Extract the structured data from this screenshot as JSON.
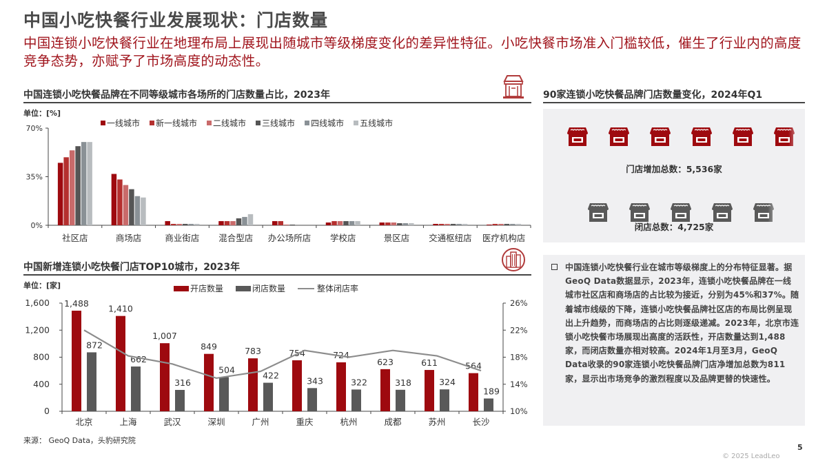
{
  "header": {
    "title": "中国小吃快餐行业发展现状：门店数量",
    "subtitle": "中国连锁小吃快餐行业在地理布局上展现出随城市等级梯度变化的差异性特征。小吃快餐市场准入门槛较低，催生了行业内的高度竞争态势，亦赋予了市场高度的动态性。"
  },
  "colors": {
    "accent": "#a0141c",
    "tier1": "#9e0a0f",
    "newtier1": "#b5302f",
    "tier2": "#c96a6a",
    "tier3": "#555555",
    "tier4": "#8a9196",
    "tier5": "#b8bcbf",
    "open": "#9e0a0f",
    "close": "#595959",
    "rate": "#8c8c8c",
    "panel_bg": "#f0f0f2"
  },
  "chart1": {
    "title": "中国连锁小吃快餐品牌在不同等级城市各场所的门店数量占比，2023年",
    "unit": "单位：[%]",
    "icon": "storefront-icon"
  },
  "chart2": {
    "title": "中国新增连锁小吃快餐门店TOP10城市，2023年",
    "unit": "单位：[家]",
    "icon": "city-buildings-icon"
  },
  "panel": {
    "title": "90家连锁小吃快餐品牌门店数量变化，2024年Q1",
    "open_label": "门店增加总数：5,536家",
    "close_label": "闭店总数：4,725家",
    "open_icons": 6,
    "close_icons": 5
  },
  "bullet": {
    "text": "中国连锁小吃快餐行业在城市等级梯度上的分布特征显著。据GeoQ Data数据显示，2023年，连锁小吃快餐品牌在一线城市社区店和商场店的占比较为接近，分别为45%和37%。随着城市线级的下降，连锁小吃快餐品牌社区店的布局比例呈现出上升趋势，而商场店的占比则逐级递减。2023年，北京市连锁小吃快餐市场展现出高度的活跃性，开店数量达到1,488家，而闭店数量亦相对较高。2024年1月至3月，GeoQ Data收录的90家连锁小吃快餐品牌门店净增加总数为811家，显示出市场竞争的激烈程度以及品牌更替的快速性。"
  },
  "footer": {
    "source": "来源：  GeoQ Data，头豹研究院",
    "page": "5",
    "copyright": "© 2025 LeadLeo"
  },
  "chart_data": [
    {
      "type": "bar",
      "title": "中国连锁小吃快餐品牌在不同等级城市各场所的门店数量占比，2023年",
      "ylabel": "单位：[%]",
      "xlabel": "",
      "ylim": [
        0,
        70
      ],
      "yticks": [
        "0%",
        "35%",
        "70%"
      ],
      "grid": false,
      "legend_position": "top",
      "categories": [
        "社区店",
        "商场店",
        "商业街店",
        "混合型店",
        "办公场所店",
        "学校店",
        "景区店",
        "交通枢纽店",
        "医疗机构店"
      ],
      "series": [
        {
          "name": "一线城市",
          "values": [
            45,
            37,
            3,
            3,
            3,
            2,
            2,
            1,
            0.5
          ]
        },
        {
          "name": "新一线城市",
          "values": [
            49,
            33,
            1,
            3,
            3,
            3,
            2,
            1,
            1
          ]
        },
        {
          "name": "二线城市",
          "values": [
            54,
            29,
            1,
            3,
            0.5,
            3,
            2,
            1,
            1
          ]
        },
        {
          "name": "三线城市",
          "values": [
            57,
            26,
            1,
            5,
            0.5,
            3,
            1.5,
            1,
            1
          ]
        },
        {
          "name": "四线城市",
          "values": [
            60,
            21,
            1,
            6,
            0,
            3,
            1.5,
            1,
            1
          ]
        },
        {
          "name": "五线城市",
          "values": [
            60,
            20,
            1,
            8,
            0,
            3,
            1.5,
            1,
            1
          ]
        }
      ]
    },
    {
      "type": "bar",
      "title": "中国新增连锁小吃快餐门店TOP10城市，2023年",
      "ylabel": "单位：[家]",
      "xlabel": "",
      "ylim": [
        0,
        1600
      ],
      "yticks": [
        "0",
        "400",
        "800",
        "1,200",
        "1,600"
      ],
      "y2lim": [
        10,
        26
      ],
      "y2ticks": [
        "10%",
        "14%",
        "18%",
        "22%",
        "26%"
      ],
      "grid": false,
      "legend_position": "top",
      "categories": [
        "北京",
        "上海",
        "武汉",
        "深圳",
        "广州",
        "重庆",
        "杭州",
        "成都",
        "苏州",
        "长沙"
      ],
      "series": [
        {
          "name": "开店数量",
          "type": "bar",
          "values": [
            1488,
            1410,
            1007,
            849,
            783,
            754,
            724,
            623,
            611,
            564
          ],
          "labels": [
            "1,488",
            "1,410",
            "1,007",
            "849",
            "783",
            "754",
            "724",
            "623",
            "611",
            "564"
          ]
        },
        {
          "name": "闭店数量",
          "type": "bar",
          "values": [
            872,
            662,
            316,
            504,
            422,
            343,
            322,
            318,
            324,
            189
          ],
          "labels": [
            "872",
            "662",
            "316",
            "504",
            "422",
            "343",
            "322",
            "318",
            "324",
            "189"
          ]
        },
        {
          "name": "整体闭店率",
          "type": "line",
          "axis": "right",
          "values": [
            22,
            18.2,
            17,
            14.9,
            15.9,
            19,
            18,
            19,
            18.2,
            16
          ]
        }
      ]
    }
  ]
}
